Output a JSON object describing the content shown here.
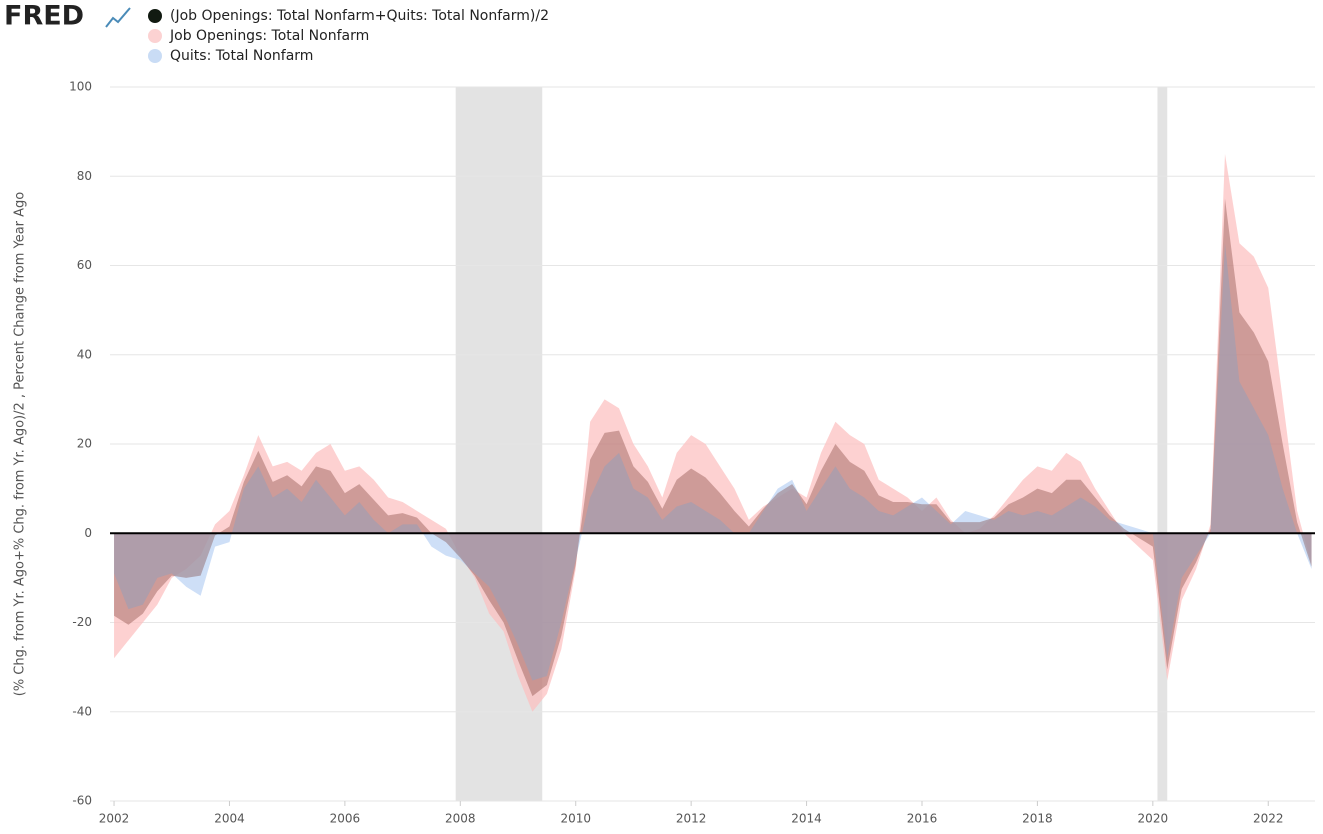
{
  "logo": "FRED",
  "chart_data": {
    "type": "area",
    "y_axis_label": "(% Chg. from Yr. Ago+% Chg. from Yr. Ago)/2 , Percent Change from Year Ago",
    "x": [
      2002,
      2002.25,
      2002.5,
      2002.75,
      2003,
      2003.25,
      2003.5,
      2003.75,
      2004,
      2004.25,
      2004.5,
      2004.75,
      2005,
      2005.25,
      2005.5,
      2005.75,
      2006,
      2006.25,
      2006.5,
      2006.75,
      2007,
      2007.25,
      2007.5,
      2007.75,
      2008,
      2008.25,
      2008.5,
      2008.75,
      2009,
      2009.25,
      2009.5,
      2009.75,
      2010,
      2010.25,
      2010.5,
      2010.75,
      2011,
      2011.25,
      2011.5,
      2011.75,
      2012,
      2012.25,
      2012.5,
      2012.75,
      2013,
      2013.25,
      2013.5,
      2013.75,
      2014,
      2014.25,
      2014.5,
      2014.75,
      2015,
      2015.25,
      2015.5,
      2015.75,
      2016,
      2016.25,
      2016.5,
      2016.75,
      2017,
      2017.25,
      2017.5,
      2017.75,
      2018,
      2018.25,
      2018.5,
      2018.75,
      2019,
      2019.25,
      2019.5,
      2019.75,
      2020,
      2020.25,
      2020.5,
      2020.75,
      2021,
      2021.25,
      2021.5,
      2021.75,
      2022,
      2022.25,
      2022.5,
      2022.75
    ],
    "series": [
      {
        "name": "(Job Openings: Total Nonfarm+Quits: Total Nonfarm)/2",
        "color": "#111a11",
        "fill": "rgba(110,40,30,0.32)",
        "values": [
          -18.5,
          -20.5,
          -18,
          -13,
          -9.5,
          -10,
          -9.5,
          -0.5,
          1.5,
          11.5,
          18.5,
          11.5,
          13,
          10.5,
          15,
          14,
          9,
          11,
          7.5,
          4,
          4.5,
          3.5,
          0,
          -2,
          -5.5,
          -9.5,
          -15,
          -20,
          -28.5,
          -36.5,
          -34,
          -23,
          -7,
          16.5,
          22.5,
          23,
          15,
          11.5,
          5.5,
          12,
          14.5,
          12.5,
          9,
          5,
          1.5,
          5.5,
          9,
          11,
          6.5,
          14,
          20,
          16,
          14,
          8.5,
          7,
          7,
          6.5,
          6.5,
          2.5,
          2.5,
          2.5,
          3.5,
          6.5,
          8,
          10,
          9,
          12,
          12,
          8,
          4,
          1,
          -1,
          -3,
          -30.5,
          -12.5,
          -6.5,
          1,
          75,
          49.5,
          45,
          38.5,
          20,
          2.5,
          -7.5
        ]
      },
      {
        "name": "Job Openings: Total Nonfarm",
        "color": "#fcd2d2",
        "fill": "rgba(252,190,190,0.7)",
        "values": [
          -28,
          -24,
          -20,
          -16,
          -10,
          -8,
          -5,
          2,
          5,
          13,
          22,
          15,
          16,
          14,
          18,
          20,
          14,
          15,
          12,
          8,
          7,
          5,
          3,
          1,
          -5,
          -10,
          -18,
          -22,
          -32,
          -40,
          -36,
          -26,
          -8,
          25,
          30,
          28,
          20,
          15,
          8,
          18,
          22,
          20,
          15,
          10,
          3,
          6,
          8,
          10,
          8,
          18,
          25,
          22,
          20,
          12,
          10,
          8,
          5,
          8,
          3,
          0,
          1,
          4,
          8,
          12,
          15,
          14,
          18,
          16,
          10,
          5,
          0,
          -3,
          -6,
          -33,
          -15,
          -8,
          2,
          85,
          65,
          62,
          55,
          30,
          5,
          -7
        ]
      },
      {
        "name": "Quits: Total Nonfarm",
        "color": "#c9dcf5",
        "fill": "rgba(190,212,244,0.75)",
        "values": [
          -9,
          -17,
          -16,
          -10,
          -9,
          -12,
          -14,
          -3,
          -2,
          10,
          15,
          8,
          10,
          7,
          12,
          8,
          4,
          7,
          3,
          0,
          2,
          2,
          -3,
          -5,
          -6,
          -9,
          -12,
          -18,
          -25,
          -33,
          -32,
          -20,
          -6,
          8,
          15,
          18,
          10,
          8,
          3,
          6,
          7,
          5,
          3,
          0,
          0,
          5,
          10,
          12,
          5,
          10,
          15,
          10,
          8,
          5,
          4,
          6,
          8,
          5,
          2,
          5,
          4,
          3,
          5,
          4,
          5,
          4,
          6,
          8,
          6,
          3,
          2,
          1,
          0,
          -28,
          -10,
          -5,
          0,
          65,
          34,
          28,
          22,
          10,
          0,
          -8
        ]
      }
    ],
    "shaded_periods": [
      [
        2007.92,
        2009.42
      ],
      [
        2020.08,
        2020.25
      ]
    ],
    "xlim": [
      2001.93,
      2022.81
    ],
    "xticks": [
      2002,
      2004,
      2006,
      2008,
      2010,
      2012,
      2014,
      2016,
      2018,
      2020,
      2022
    ],
    "ylim": [
      -60,
      100
    ],
    "yticks": [
      -60,
      -40,
      -20,
      0,
      20,
      40,
      60,
      80,
      100
    ],
    "grid": true
  }
}
